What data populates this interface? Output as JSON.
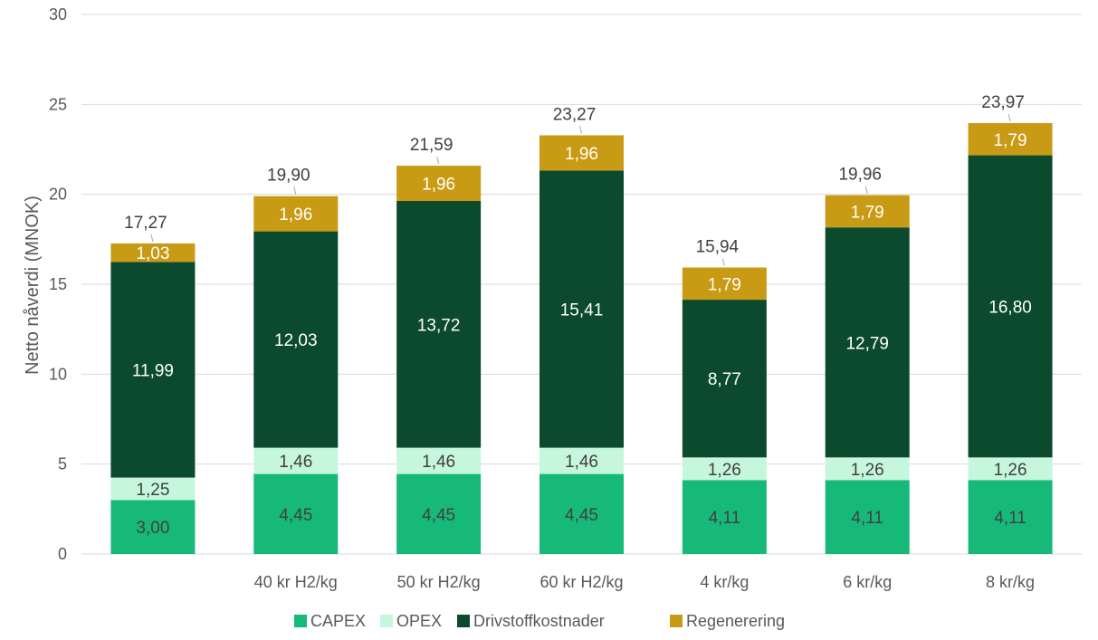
{
  "chart_data": {
    "type": "bar",
    "stacked": true,
    "title": "",
    "xlabel": "",
    "ylabel": "Netto nåverdi (MNOK)",
    "ylim": [
      0,
      30
    ],
    "yticks": [
      0,
      5,
      10,
      15,
      20,
      25,
      30
    ],
    "grid": true,
    "legend_position": "bottom",
    "categories": [
      "",
      "40 kr H2/kg",
      "50 kr H2/kg",
      "60 kr H2/kg",
      "4 kr/kg",
      "6 kr/kg",
      "8 kr/kg"
    ],
    "series": [
      {
        "name": "CAPEX",
        "color": "#17b978",
        "label_color": "#404040",
        "values": [
          3.0,
          4.45,
          4.45,
          4.45,
          4.11,
          4.11,
          4.11
        ],
        "labels": [
          "3,00",
          "4,45",
          "4,45",
          "4,45",
          "4,11",
          "4,11",
          "4,11"
        ]
      },
      {
        "name": "OPEX",
        "color": "#c6f7dc",
        "label_color": "#404040",
        "values": [
          1.25,
          1.46,
          1.46,
          1.46,
          1.26,
          1.26,
          1.26
        ],
        "labels": [
          "1,25",
          "1,46",
          "1,46",
          "1,46",
          "1,26",
          "1,26",
          "1,26"
        ]
      },
      {
        "name": "Drivstoffkostnader",
        "color": "#0b4a2c",
        "label_color": "#ffffff",
        "values": [
          11.99,
          12.03,
          13.72,
          15.41,
          8.77,
          12.79,
          16.8
        ],
        "labels": [
          "11,99",
          "12,03",
          "13,72",
          "15,41",
          "8,77",
          "12,79",
          "16,80"
        ]
      },
      {
        "name": "Regenerering",
        "color": "#c99a14",
        "label_color": "#ffffff",
        "values": [
          1.03,
          1.96,
          1.96,
          1.96,
          1.79,
          1.79,
          1.79
        ],
        "labels": [
          "1,03",
          "1,96",
          "1,96",
          "1,96",
          "1,79",
          "1,79",
          "1,79"
        ]
      }
    ],
    "totals": [
      17.27,
      19.9,
      21.59,
      23.27,
      15.94,
      19.96,
      23.97
    ],
    "total_labels": [
      "17,27",
      "19,90",
      "21,59",
      "23,27",
      "15,94",
      "19,96",
      "23,97"
    ],
    "gridline_color": "#d9d9d9"
  }
}
